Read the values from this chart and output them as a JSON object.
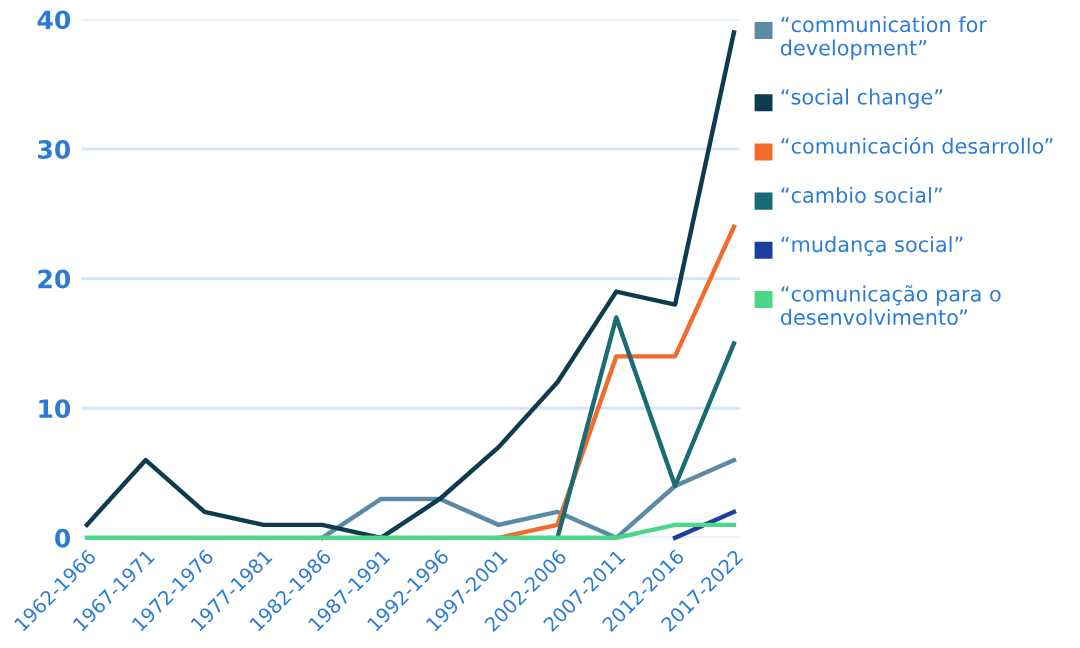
{
  "chart_data": {
    "type": "line",
    "categories": [
      "1962-1966",
      "1967-1971",
      "1972-1976",
      "1977-1981",
      "1982-1986",
      "1987-1991",
      "1992-1996",
      "1997-2001",
      "2002-2006",
      "2007-2011",
      "2012-2016",
      "2017-2022"
    ],
    "series": [
      {
        "name": "“communication for development”",
        "color": "#5b8aa6",
        "values": [
          null,
          null,
          null,
          null,
          0,
          3,
          3,
          1,
          2,
          0,
          4,
          6
        ]
      },
      {
        "name": "“social change”",
        "color": "#0d3b4f",
        "values": [
          1,
          6,
          2,
          1,
          1,
          0,
          3,
          7,
          12,
          19,
          18,
          39
        ]
      },
      {
        "name": "“comunicación desarrollo”",
        "color": "#f26b2e",
        "values": [
          null,
          null,
          null,
          null,
          null,
          null,
          null,
          0,
          1,
          14,
          14,
          24
        ]
      },
      {
        "name": "“cambio social”",
        "color": "#1a6b73",
        "values": [
          null,
          null,
          null,
          null,
          null,
          null,
          null,
          null,
          0,
          17,
          4,
          15
        ]
      },
      {
        "name": "“mudança social”",
        "color": "#1a3fa0",
        "values": [
          null,
          null,
          null,
          null,
          null,
          null,
          null,
          null,
          null,
          null,
          0,
          2
        ]
      },
      {
        "name": "“comunicação para o desenvolvimento”",
        "color": "#4cd68a",
        "values": [
          0,
          0,
          0,
          0,
          0,
          0,
          0,
          0,
          0,
          0,
          1,
          1
        ]
      }
    ],
    "ylim": [
      0,
      40
    ],
    "yticks": [
      0,
      10,
      20,
      30,
      40
    ],
    "grid": "y",
    "legend": "right",
    "marker": "none",
    "line_style": "solid"
  }
}
